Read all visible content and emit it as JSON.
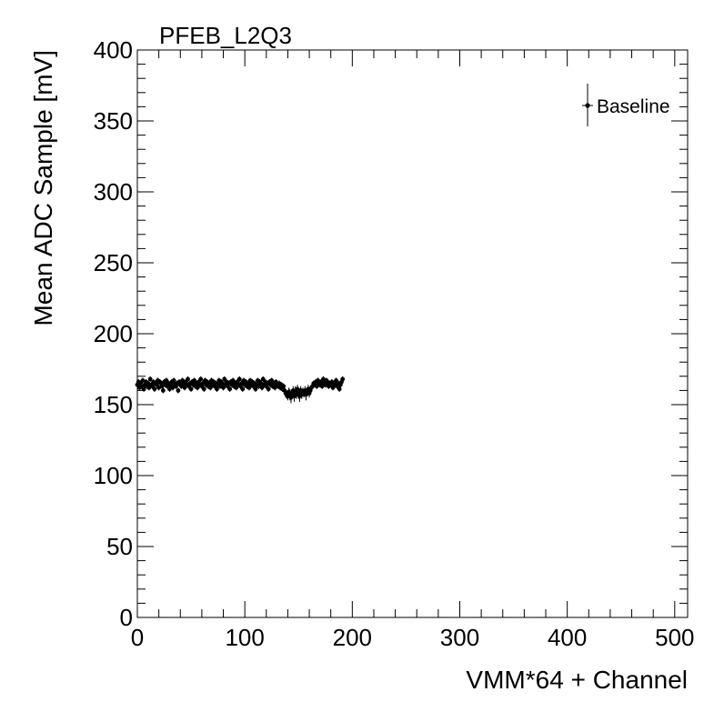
{
  "chart_data": {
    "type": "scatter",
    "title": "PFEB_L2Q3",
    "xlabel": "VMM*64 + Channel",
    "ylabel": "Mean ADC Sample [mV]",
    "xlim": [
      0,
      512
    ],
    "ylim": [
      0,
      400
    ],
    "x_ticks": [
      0,
      100,
      200,
      300,
      400,
      500
    ],
    "y_ticks": [
      0,
      50,
      100,
      150,
      200,
      250,
      300,
      350,
      400
    ],
    "grid": false,
    "legend_position": "top-right",
    "series": [
      {
        "name": "Baseline",
        "color": "#000000",
        "x": [
          0,
          1,
          2,
          3,
          4,
          5,
          6,
          7,
          8,
          9,
          10,
          11,
          12,
          13,
          14,
          15,
          16,
          17,
          18,
          19,
          20,
          21,
          22,
          23,
          24,
          25,
          26,
          27,
          28,
          29,
          30,
          31,
          32,
          33,
          34,
          35,
          36,
          37,
          38,
          39,
          40,
          41,
          42,
          43,
          44,
          45,
          46,
          47,
          48,
          49,
          50,
          51,
          52,
          53,
          54,
          55,
          56,
          57,
          58,
          59,
          60,
          61,
          62,
          63,
          64,
          65,
          66,
          67,
          68,
          69,
          70,
          71,
          72,
          73,
          74,
          75,
          76,
          77,
          78,
          79,
          80,
          81,
          82,
          83,
          84,
          85,
          86,
          87,
          88,
          89,
          90,
          91,
          92,
          93,
          94,
          95,
          96,
          97,
          98,
          99,
          100,
          101,
          102,
          103,
          104,
          105,
          106,
          107,
          108,
          109,
          110,
          111,
          112,
          113,
          114,
          115,
          116,
          117,
          118,
          119,
          120,
          121,
          122,
          123,
          124,
          125,
          126,
          127,
          128,
          129,
          130,
          131,
          132,
          133,
          134,
          135,
          136,
          137,
          138,
          139,
          140,
          141,
          142,
          143,
          144,
          145,
          146,
          147,
          148,
          149,
          150,
          151,
          152,
          153,
          154,
          155,
          156,
          157,
          158,
          159,
          160,
          161,
          162,
          163,
          164,
          165,
          166,
          167,
          168,
          169,
          170,
          171,
          172,
          173,
          174,
          175,
          176,
          177,
          178,
          179,
          180,
          181,
          182,
          183,
          184,
          185,
          186,
          187,
          188,
          189,
          190,
          191
        ],
        "y": [
          164,
          166,
          162,
          165,
          163,
          167,
          161,
          164,
          166,
          163,
          165,
          162,
          168,
          164,
          163,
          166,
          161,
          165,
          164,
          167,
          162,
          166,
          165,
          163,
          160,
          166,
          164,
          167,
          163,
          165,
          161,
          164,
          166,
          162,
          167,
          164,
          163,
          165,
          160,
          166,
          164,
          163,
          167,
          165,
          162,
          166,
          164,
          168,
          163,
          165,
          161,
          166,
          164,
          167,
          163,
          165,
          162,
          166,
          164,
          168,
          163,
          165,
          161,
          167,
          164,
          166,
          163,
          165,
          162,
          167,
          164,
          166,
          163,
          165,
          161,
          164,
          167,
          163,
          166,
          165,
          162,
          168,
          164,
          166,
          163,
          165,
          161,
          166,
          164,
          167,
          163,
          165,
          162,
          166,
          164,
          168,
          163,
          165,
          161,
          167,
          164,
          166,
          163,
          165,
          162,
          167,
          164,
          166,
          163,
          165,
          161,
          164,
          167,
          163,
          166,
          165,
          162,
          168,
          164,
          166,
          163,
          165,
          161,
          166,
          164,
          167,
          163,
          165,
          162,
          166,
          164,
          163,
          165,
          162,
          164,
          161,
          163,
          160,
          158,
          157,
          156,
          159,
          157,
          155,
          158,
          160,
          156,
          159,
          157,
          161,
          158,
          156,
          160,
          157,
          159,
          158,
          160,
          157,
          159,
          161,
          158,
          160,
          162,
          163,
          165,
          164,
          166,
          163,
          167,
          165,
          164,
          166,
          163,
          168,
          165,
          164,
          167,
          166,
          163,
          165,
          164,
          166,
          162,
          165,
          164,
          167,
          163,
          165,
          161,
          164,
          166,
          168
        ],
        "err": [
          2,
          2,
          2,
          2,
          2,
          2,
          2,
          2,
          2,
          2,
          2,
          2,
          2,
          2,
          2,
          2,
          2,
          2,
          2,
          2,
          2,
          2,
          2,
          2,
          2,
          2,
          2,
          2,
          2,
          2,
          2,
          2,
          2,
          2,
          2,
          2,
          2,
          2,
          2,
          2,
          2,
          2,
          2,
          2,
          2,
          2,
          2,
          2,
          2,
          2,
          2,
          2,
          2,
          2,
          2,
          2,
          2,
          2,
          2,
          2,
          2,
          2,
          2,
          2,
          2,
          2,
          2,
          2,
          2,
          2,
          2,
          2,
          2,
          2,
          2,
          2,
          2,
          2,
          2,
          2,
          2,
          2,
          2,
          2,
          2,
          2,
          2,
          2,
          2,
          2,
          2,
          2,
          2,
          2,
          2,
          2,
          2,
          2,
          2,
          2,
          2,
          2,
          2,
          2,
          2,
          2,
          2,
          2,
          2,
          2,
          2,
          2,
          2,
          2,
          2,
          2,
          2,
          2,
          2,
          2,
          2,
          2,
          2,
          2,
          2,
          2,
          2,
          2,
          2,
          2,
          2,
          2,
          2,
          2,
          2,
          2,
          2,
          3,
          3,
          3,
          3,
          3,
          4,
          4,
          3,
          3,
          4,
          4,
          3,
          3,
          4,
          4,
          3,
          3,
          3,
          3,
          3,
          4,
          3,
          3,
          3,
          3,
          2,
          2,
          2,
          2,
          2,
          2,
          2,
          2,
          2,
          2,
          2,
          2,
          2,
          2,
          2,
          2,
          2,
          2,
          2,
          2,
          2,
          2,
          2,
          2,
          2,
          2,
          2,
          2,
          2,
          2
        ]
      }
    ]
  }
}
